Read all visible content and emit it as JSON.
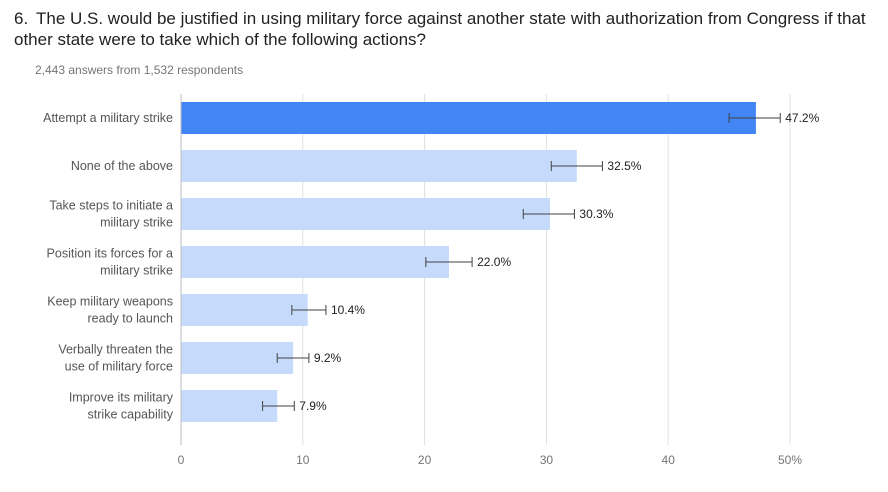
{
  "question": {
    "number": "6.",
    "text": "The U.S. would be justified in using military force against another state with authorization from Congress if that other state were to take which of the following actions?"
  },
  "response_summary": "2,443 answers from 1,532 respondents",
  "colors": {
    "highlight_bar": "#4285f4",
    "bar": "#c6dafc",
    "gridline": "#e0e0e0",
    "axis": "#bdbdbd",
    "error_bar": "#424242"
  },
  "chart_data": {
    "type": "bar",
    "orientation": "horizontal",
    "categories": [
      [
        "Attempt a military strike"
      ],
      [
        "None of the above"
      ],
      [
        "Take steps to initiate a",
        "military strike"
      ],
      [
        "Position its forces for a",
        "military strike"
      ],
      [
        "Keep military weapons",
        "ready to launch"
      ],
      [
        "Verbally threaten the",
        "use of military force"
      ],
      [
        "Improve its military",
        "strike capability"
      ]
    ],
    "values": [
      47.2,
      32.5,
      30.3,
      22.0,
      10.4,
      9.2,
      7.9
    ],
    "value_labels": [
      "47.2%",
      "32.5%",
      "30.3%",
      "22.0%",
      "10.4%",
      "9.2%",
      "7.9%"
    ],
    "error_low": [
      45.0,
      30.4,
      28.1,
      20.1,
      9.1,
      7.9,
      6.7
    ],
    "error_high": [
      49.2,
      34.6,
      32.3,
      23.9,
      11.9,
      10.5,
      9.3
    ],
    "highlighted_index": 0,
    "xlim": [
      0,
      50
    ],
    "xticks": [
      0,
      10,
      20,
      30,
      40,
      50
    ],
    "xtick_labels": [
      "0",
      "10",
      "20",
      "30",
      "40",
      "50%"
    ],
    "grid": true
  }
}
